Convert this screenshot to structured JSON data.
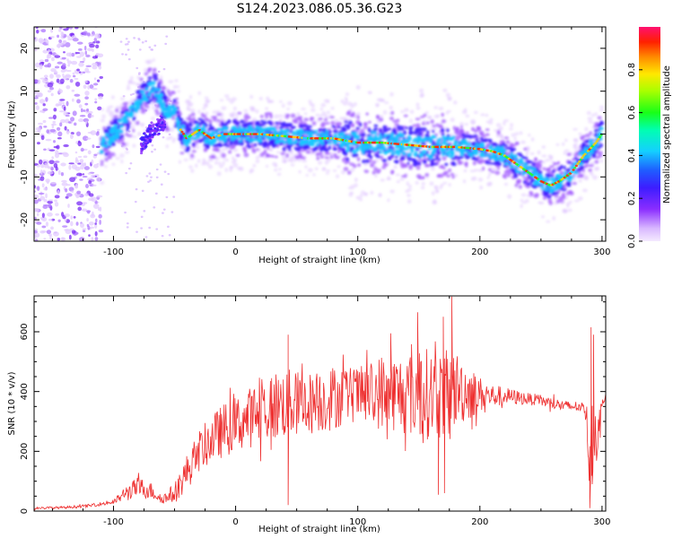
{
  "title": "S124.2023.086.05.36.G23",
  "chart_data": [
    {
      "type": "heatmap",
      "xlabel": "Height of straight line (km)",
      "ylabel": "Frequency (Hz)",
      "xlim": [
        -165,
        303
      ],
      "ylim": [
        -25,
        25
      ],
      "x_ticks": [
        "-100",
        "0",
        "100",
        "200",
        "300"
      ],
      "x_tick_values": [
        -100,
        0,
        100,
        200,
        300
      ],
      "y_ticks": [
        "-20",
        "-10",
        "0",
        "10",
        "20"
      ],
      "y_tick_values": [
        -20,
        -10,
        0,
        10,
        20
      ],
      "colorbar": {
        "label": "Normalized spectral amplitude",
        "ticks": [
          "0.0",
          "0.2",
          "0.4",
          "0.6",
          "0.8"
        ],
        "tick_values": [
          0.0,
          0.2,
          0.4,
          0.6,
          0.8
        ],
        "range": [
          0,
          1
        ],
        "colormap": "rainbow (white-purple-blue-cyan-green-yellow-red-magenta)"
      },
      "ridge": {
        "x": [
          -110,
          -100,
          -90,
          -80,
          -72,
          -66,
          -60,
          -55,
          -50,
          -45,
          -40,
          -30,
          -20,
          -10,
          0,
          20,
          40,
          60,
          80,
          100,
          120,
          140,
          160,
          180,
          200,
          210,
          220,
          230,
          240,
          250,
          258,
          265,
          275,
          285,
          295,
          300
        ],
        "y": [
          -3,
          0,
          3,
          7,
          10,
          11,
          7,
          5,
          5,
          1,
          -1,
          1,
          -1,
          0,
          0,
          0,
          -0.5,
          -1,
          -1,
          -2,
          -2,
          -2.5,
          -3,
          -3,
          -3.5,
          -4,
          -5,
          -7,
          -9,
          -11,
          -12,
          -11,
          -9,
          -5,
          -2,
          0
        ]
      },
      "secondary_branch": {
        "x": [
          -78,
          -73,
          -68,
          -63,
          -58
        ],
        "y": [
          -3,
          -1,
          1,
          2,
          3
        ]
      },
      "noise_region_x": [
        -165,
        -110
      ]
    },
    {
      "type": "line",
      "xlabel": "Height of straight line (km)",
      "ylabel": "SNR (10 * v/v)",
      "xlim": [
        -165,
        303
      ],
      "ylim": [
        0,
        720
      ],
      "x_ticks": [
        "-100",
        "0",
        "100",
        "200",
        "300"
      ],
      "x_tick_values": [
        -100,
        0,
        100,
        200,
        300
      ],
      "y_ticks": [
        "0",
        "200",
        "400",
        "600"
      ],
      "y_tick_values": [
        0,
        200,
        400,
        600
      ],
      "series": [
        {
          "color": "#ee3030",
          "x": [
            -165,
            -140,
            -120,
            -100,
            -90,
            -80,
            -70,
            -60,
            -50,
            -40,
            -30,
            -20,
            -10,
            0,
            10,
            20,
            30,
            40,
            50,
            60,
            70,
            80,
            90,
            100,
            110,
            120,
            130,
            140,
            150,
            160,
            170,
            180,
            190,
            200,
            210,
            220,
            230,
            240,
            250,
            260,
            270,
            280,
            286,
            290,
            293,
            296,
            300,
            303
          ],
          "values": [
            10,
            12,
            18,
            30,
            60,
            80,
            70,
            40,
            60,
            130,
            200,
            240,
            270,
            290,
            310,
            330,
            350,
            360,
            360,
            360,
            370,
            380,
            390,
            390,
            390,
            400,
            395,
            390,
            400,
            390,
            390,
            410,
            400,
            390,
            385,
            385,
            380,
            375,
            370,
            360,
            350,
            350,
            345,
            200,
            300,
            250,
            350,
            400
          ],
          "amplitude": [
            4,
            4,
            5,
            8,
            25,
            35,
            30,
            15,
            35,
            60,
            70,
            80,
            90,
            95,
            100,
            110,
            120,
            120,
            110,
            105,
            110,
            110,
            100,
            90,
            110,
            130,
            130,
            140,
            160,
            150,
            150,
            130,
            100,
            60,
            40,
            30,
            25,
            20,
            20,
            20,
            20,
            18,
            20,
            150,
            120,
            90,
            25,
            20
          ],
          "peaks": [
            {
              "x": 177,
              "value": 718
            },
            {
              "x": 149,
              "value": 665
            },
            {
              "x": 170,
              "value": 650
            },
            {
              "x": 127,
              "value": 595
            },
            {
              "x": 291,
              "value": 615
            },
            {
              "x": 43,
              "value": 590
            },
            {
              "x": 293,
              "value": 590
            }
          ],
          "dips": [
            {
              "x": 43,
              "value": 20
            },
            {
              "x": 166,
              "value": 55
            },
            {
              "x": 171,
              "value": 60
            },
            {
              "x": 290,
              "value": 10
            },
            {
              "x": 292,
              "value": 90
            }
          ]
        }
      ]
    }
  ]
}
